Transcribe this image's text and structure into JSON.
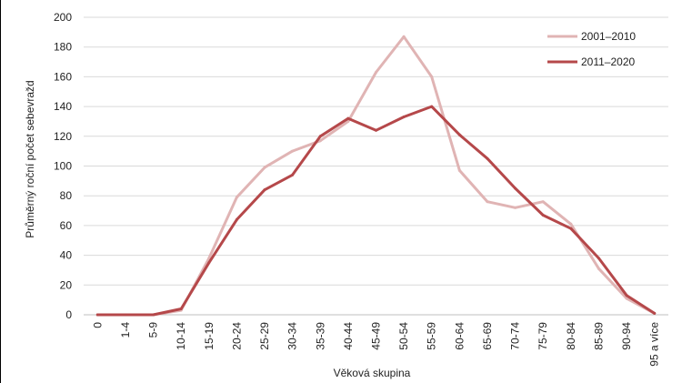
{
  "chart_data": {
    "type": "line",
    "title": "",
    "xlabel": "Věková skupina",
    "ylabel": "Průměrný roční počet sebevražd",
    "ylim": [
      0,
      200
    ],
    "yticks": [
      0,
      20,
      40,
      60,
      80,
      100,
      120,
      140,
      160,
      180,
      200
    ],
    "grid": "horizontal",
    "legend_position": "top-right",
    "categories": [
      "0",
      "1-4",
      "5-9",
      "10-14",
      "15-19",
      "20-24",
      "25-29",
      "30-34",
      "35-39",
      "40-44",
      "45-49",
      "50-54",
      "55-59",
      "60-64",
      "65-69",
      "70-74",
      "75-79",
      "80-84",
      "85-89",
      "90-94",
      "95 a více"
    ],
    "series": [
      {
        "name": "2001–2010",
        "color": "#e0b4b4",
        "values": [
          0,
          0,
          0,
          3,
          38,
          79,
          99,
          110,
          117,
          130,
          163,
          187,
          160,
          97,
          76,
          72,
          76,
          61,
          31,
          11,
          1
        ]
      },
      {
        "name": "2011–2020",
        "color": "#b5484a",
        "values": [
          0,
          0,
          0,
          4,
          35,
          64,
          84,
          94,
          120,
          132,
          124,
          133,
          140,
          121,
          105,
          85,
          67,
          58,
          38,
          13,
          1
        ]
      }
    ]
  }
}
